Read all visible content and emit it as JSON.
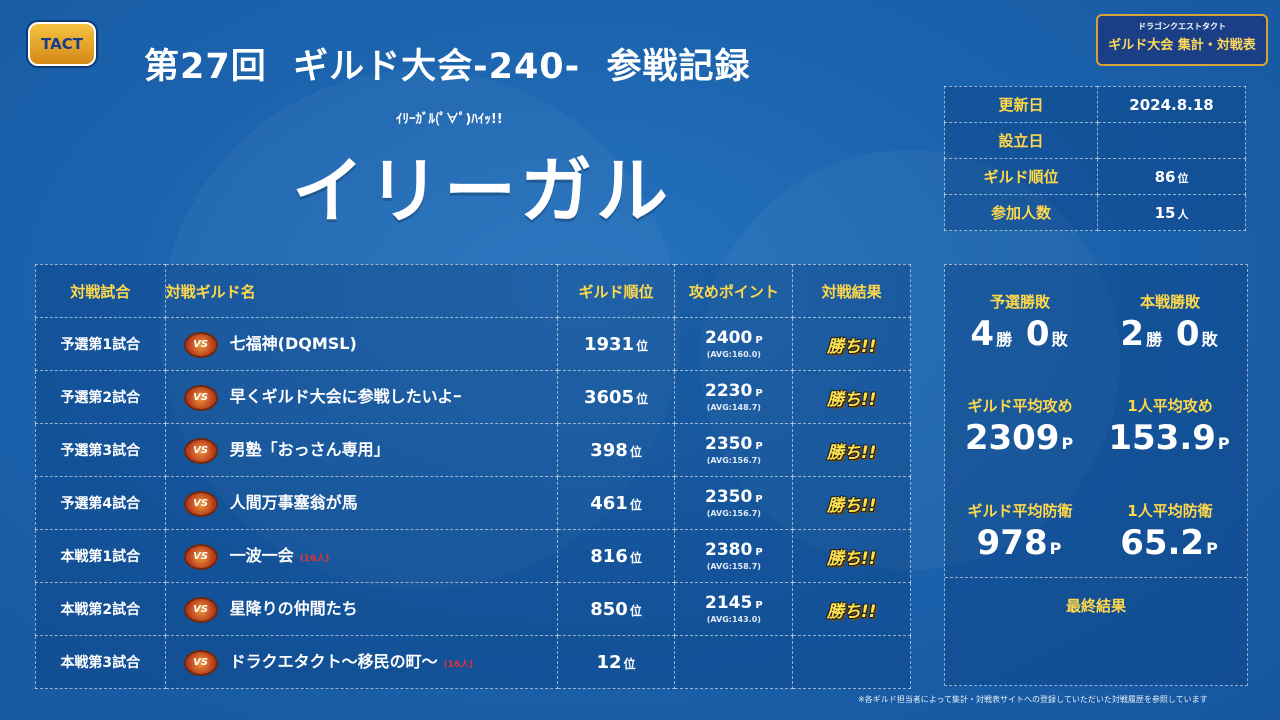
{
  "logo_text": "TACT",
  "brand": {
    "small": "ドラゴンクエストタクト",
    "large": "ギルド大会 集計・対戦表"
  },
  "title": "第27回  ギルド大会-240-  参戦記録",
  "subtitle": "ｲﾘｰｶﾞﾙ(ﾟ∀ﾟ)ﾊｲｯ!!",
  "guild_name": "イリーガル",
  "info": {
    "update_label": "更新日",
    "update_value": "2024.8.18",
    "founded_label": "設立日",
    "founded_value": "",
    "rank_label": "ギルド順位",
    "rank_value": "86",
    "rank_unit": "位",
    "members_label": "参加人数",
    "members_value": "15",
    "members_unit": "人"
  },
  "table": {
    "headers": [
      "対戦試合",
      "対戦ギルド名",
      "ギルド順位",
      "攻めポイント",
      "対戦結果"
    ],
    "vs_label": "VS",
    "rank_unit": "位",
    "point_unit": "P",
    "rows": [
      {
        "match": "予選第1試合",
        "opponent": "七福神(DQMSL)",
        "note": "",
        "rank": "1931",
        "points": "2400",
        "avg": "(AVG:160.0)",
        "result": "勝ち!!"
      },
      {
        "match": "予選第2試合",
        "opponent": "早くギルド大会に参戦したいよｰ",
        "note": "",
        "rank": "3605",
        "points": "2230",
        "avg": "(AVG:148.7)",
        "result": "勝ち!!"
      },
      {
        "match": "予選第3試合",
        "opponent": "男塾「おっさん専用」",
        "note": "",
        "rank": "398",
        "points": "2350",
        "avg": "(AVG:156.7)",
        "result": "勝ち!!"
      },
      {
        "match": "予選第4試合",
        "opponent": "人間万事塞翁が馬",
        "note": "",
        "rank": "461",
        "points": "2350",
        "avg": "(AVG:156.7)",
        "result": "勝ち!!"
      },
      {
        "match": "本戦第1試合",
        "opponent": "一波一会",
        "note": "(16人)",
        "rank": "816",
        "points": "2380",
        "avg": "(AVG:158.7)",
        "result": "勝ち!!"
      },
      {
        "match": "本戦第2試合",
        "opponent": "星降りの仲間たち",
        "note": "",
        "rank": "850",
        "points": "2145",
        "avg": "(AVG:143.0)",
        "result": "勝ち!!"
      },
      {
        "match": "本戦第3試合",
        "opponent": "ドラクエタクト〜移民の町〜",
        "note": "(16人)",
        "rank": "12",
        "points": "",
        "avg": "",
        "result": ""
      }
    ]
  },
  "stats": {
    "prelim_label": "予選勝敗",
    "prelim_wins": "4",
    "prelim_losses": "0",
    "main_label": "本戦勝敗",
    "main_wins": "2",
    "main_losses": "0",
    "win_unit": "勝",
    "loss_unit": "敗",
    "guild_atk_label": "ギルド平均攻め",
    "guild_atk_value": "2309",
    "person_atk_label": "1人平均攻め",
    "person_atk_value": "153.9",
    "guild_def_label": "ギルド平均防衛",
    "guild_def_value": "978",
    "person_def_label": "1人平均防衛",
    "person_def_value": "65.2",
    "point_unit": "P",
    "final_label": "最終結果",
    "final_value": ""
  },
  "footnote": "※各ギルド担当者によって集計・対戦表サイトへの登録していただいた対戦履歴を参照しています"
}
